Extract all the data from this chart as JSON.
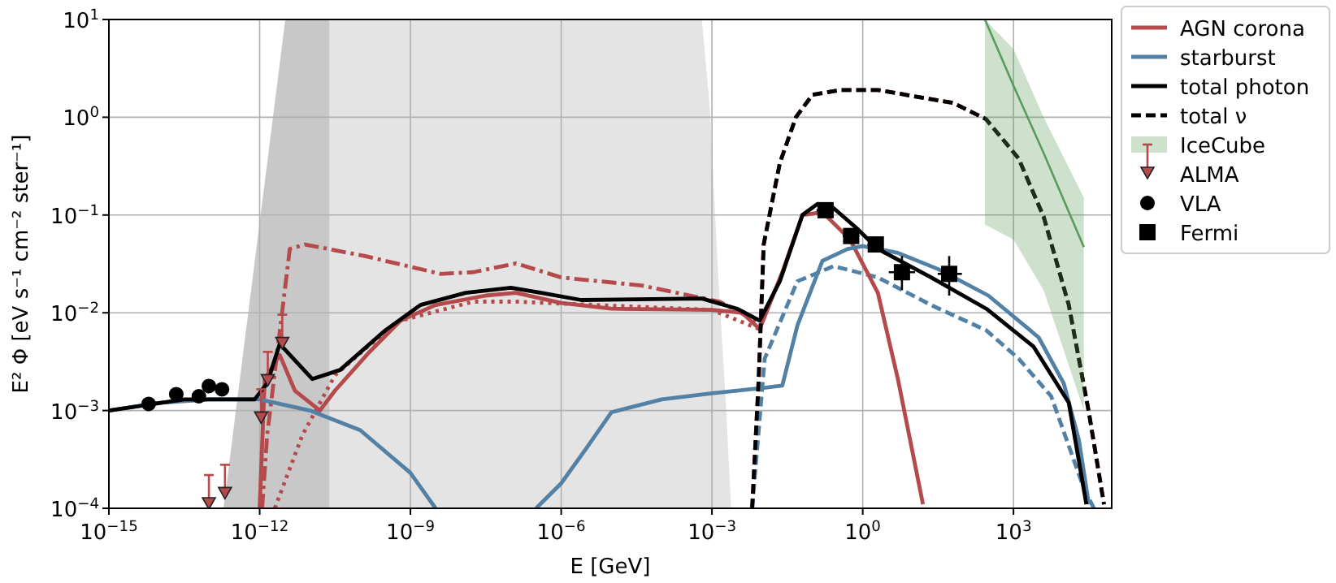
{
  "chart_data": {
    "type": "line",
    "xlabel": "E [GeV]",
    "ylabel": "E² Φ [eV s⁻¹ cm⁻² ster⁻¹]",
    "log": "xy",
    "grid": true,
    "legend": "top right",
    "xlim": [
      1e-15,
      90000.0
    ],
    "ylim": [
      0.0001,
      10
    ],
    "xticks": [
      {
        "value": 1e-15,
        "label": "10$^{−15}$"
      },
      {
        "value": 1e-12,
        "label": "10$^{−12}$"
      },
      {
        "value": 1e-09,
        "label": "10$^{−9}$"
      },
      {
        "value": 1e-06,
        "label": "10$^{−6}$"
      },
      {
        "value": 0.001,
        "label": "10$^{−3}$"
      },
      {
        "value": 1,
        "label": "10$^{0}$"
      },
      {
        "value": 1000,
        "label": "10$^{3}$"
      }
    ],
    "yticks": [
      {
        "value": 0.0001,
        "label": "10$^{−4}$"
      },
      {
        "value": 0.001,
        "label": "10$^{−3}$"
      },
      {
        "value": 0.01,
        "label": "10$^{−2}$"
      },
      {
        "value": 0.1,
        "label": "10$^{−1}$"
      },
      {
        "value": 1,
        "label": "10$^{0}$"
      },
      {
        "value": 10,
        "label": "10$^{1}$"
      }
    ],
    "series": [
      {
        "type": "area",
        "color": "#e4e4e4",
        "x": [
          2.45e-11,
          0.000631,
          0.000912,
          0.00132,
          0.00191,
          0.0024
        ],
        "values": [
          10,
          10,
          1.2,
          0.026,
          0.00107,
          0.0001
        ]
      },
      {
        "type": "area",
        "color": "#c8c8c8",
        "x": [
          1.91e-13,
          3.24e-12,
          2.45e-11
        ],
        "values": [
          0.0001,
          10,
          10
        ]
      },
      {
        "color": "#b54a4c",
        "line_style": "dashdot",
        "x": [
          1.12e-12,
          1.41e-12,
          3.98e-12,
          7.94e-12,
          1.26e-10,
          3.98e-09,
          1.78e-08,
          1.26e-07,
          1e-06,
          3.98e-05,
          0.00141,
          0.00891
        ],
        "values": [
          0.0001,
          0.00056,
          0.045,
          0.05,
          0.038,
          0.025,
          0.026,
          0.032,
          0.023,
          0.019,
          0.013,
          0.0079
        ]
      },
      {
        "color": "#b54a4c",
        "line_style": "dotted",
        "x": [
          2e-12,
          7.08e-12,
          3.16e-11,
          1.41e-10,
          6.31e-10,
          1.78e-08,
          1.26e-07,
          5.01e-06,
          0.001,
          0.00891
        ],
        "values": [
          0.0001,
          0.00056,
          0.0023,
          0.0045,
          0.0083,
          0.013,
          0.013,
          0.012,
          0.0107,
          0.0068
        ]
      },
      {
        "color": "#b54a4c",
        "line_style": "dashed",
        "x": [
          0.00631,
          0.00851,
          0.0107,
          0.0224,
          0.0468,
          0.1,
          0.355,
          2.0,
          63.1,
          282,
          1259,
          3981,
          12600.0,
          31600.0,
          63100.0
        ],
        "values": [
          0.0001,
          0.0021,
          0.05,
          0.34,
          1.0,
          1.7,
          1.9,
          1.9,
          1.4,
          0.96,
          0.38,
          0.096,
          0.012,
          0.00096,
          0.00011
        ]
      },
      {
        "color": "#5381a6",
        "line_style": "dashed",
        "x": [
          0.00631,
          0.0112,
          0.0501,
          0.263,
          2.0,
          22.9,
          288,
          1259,
          5623,
          25100.0,
          39800.0
        ],
        "values": [
          0.0001,
          0.0034,
          0.021,
          0.03,
          0.023,
          0.012,
          0.0066,
          0.0034,
          0.0014,
          0.00016,
          0.0001
        ]
      },
      {
        "name": "AGN corona",
        "color": "#b54a4c",
        "line_style": "solid",
        "x": [
          1e-12,
          1.26e-12,
          2.51e-12,
          5.01e-12,
          1.58e-11,
          3.16e-11,
          1.41e-10,
          6.31e-10,
          3.16e-09,
          3.16e-08,
          1.26e-07,
          1e-06,
          1e-05,
          0.001,
          0.00398,
          0.00891,
          0.0251,
          0.0631,
          0.158,
          0.562,
          2.0,
          5.01,
          15.8
        ],
        "values": [
          0.0001,
          0.0021,
          0.0037,
          0.0016,
          0.001,
          0.0016,
          0.0038,
          0.0083,
          0.012,
          0.015,
          0.016,
          0.0126,
          0.011,
          0.0107,
          0.01,
          0.0068,
          0.026,
          0.1,
          0.107,
          0.056,
          0.016,
          0.0021,
          0.00011
        ]
      },
      {
        "name": "starburst",
        "color": "#5381a6",
        "line_style": "solid",
        "x": [
          1e-15,
          1e-14,
          1e-13,
          1e-12,
          1e-11,
          1e-10,
          1e-09,
          3.16e-09,
          3.16e-08,
          3.16e-07,
          1e-06,
          3.16e-06,
          1e-05,
          0.0001,
          0.001,
          0.01,
          0.0251,
          0.0501,
          0.158,
          0.501,
          1,
          5.01,
          31.6,
          316,
          3162,
          10000.0,
          20000.0,
          31600.0
        ],
        "values": [
          0.001,
          0.0012,
          0.0013,
          0.0013,
          0.001,
          0.00063,
          0.00023,
          0.0001,
          null,
          0.0001,
          0.00018,
          0.00041,
          0.00096,
          0.0013,
          0.0015,
          0.0017,
          0.0018,
          0.0074,
          0.034,
          0.045,
          0.048,
          0.041,
          0.028,
          0.015,
          0.0056,
          0.0019,
          0.0005,
          0.00011
        ]
      },
      {
        "name": "total photon",
        "color": "#000000",
        "line_style": "solid",
        "x": [
          1e-15,
          3.16e-14,
          7.94e-13,
          1.41e-12,
          2.51e-12,
          1.12e-11,
          3.98e-11,
          3.16e-10,
          1.58e-09,
          1.26e-08,
          1e-07,
          3.98e-07,
          2.51e-06,
          0.000631,
          0.00316,
          0.00891,
          0.0224,
          0.0631,
          0.126,
          0.251,
          0.741,
          2.0,
          22.9,
          288,
          2512,
          12600.0,
          28200.0
        ],
        "values": [
          0.001,
          0.0013,
          0.0013,
          0.0019,
          0.0048,
          0.0021,
          0.0026,
          0.0066,
          0.012,
          0.016,
          0.018,
          0.016,
          0.0135,
          0.014,
          0.011,
          0.0083,
          0.021,
          0.1,
          0.13,
          0.12,
          0.074,
          0.045,
          0.023,
          0.011,
          0.0045,
          0.0012,
          0.00011
        ]
      },
      {
        "name": "total ν",
        "color": "#000000",
        "line_style": "dashed",
        "x": [
          0.00631,
          0.00851,
          0.0107,
          0.0224,
          0.0468,
          0.1,
          0.355,
          2.0,
          63.1,
          282,
          1259,
          3981,
          12600.0,
          31600.0,
          63100.0
        ],
        "values": [
          0.0001,
          0.0021,
          0.05,
          0.34,
          1.0,
          1.7,
          1.9,
          1.9,
          1.4,
          0.96,
          0.38,
          0.096,
          0.012,
          0.00096,
          0.00011
        ]
      },
      {
        "name": "IceCube",
        "color": "#5a9a5a",
        "line_style": "solid",
        "x": [
          270,
          1000,
          3981,
          25100.0
        ],
        "values": [
          10,
          2.1,
          0.43,
          0.047
        ],
        "lower": [
          0.08,
          0.056,
          0.017,
          0.001
        ],
        "upper": [
          10,
          5,
          1.0,
          0.15
        ]
      },
      {
        "type": "scatter",
        "name": "ALMA",
        "color": "#b54a4c",
        "marker": "triangle",
        "x": [
          9.77e-14,
          2.04e-13,
          1.07e-12,
          1.45e-12,
          2.82e-12
        ],
        "values": [
          0.00011,
          0.00014,
          0.00083,
          0.002,
          0.0048
        ]
      },
      {
        "type": "scatter",
        "name": "VLA",
        "color": "#000000",
        "marker": "circle",
        "x": [
          6.17e-15,
          2.19e-14,
          6.17e-14,
          9.77e-14,
          1.78e-13
        ],
        "values": [
          0.00117,
          0.00147,
          0.0014,
          0.00178,
          0.00165
        ]
      },
      {
        "type": "scatter",
        "name": "Fermi",
        "color": "#000000",
        "marker": "square",
        "x": [
          0.182,
          0.589,
          1.82,
          6.03,
          52.5
        ],
        "values": [
          0.112,
          0.061,
          0.05,
          0.026,
          0.025
        ],
        "errors": [
          null,
          null,
          null,
          [
            0.017,
            0.038
          ],
          [
            0.015,
            0.038
          ]
        ],
        "xerrors": [
          [
            0.12,
            0.28
          ],
          [
            0.4,
            0.85
          ],
          [
            1.25,
            2.6
          ],
          [
            3.3,
            11
          ],
          [
            31,
            94
          ]
        ]
      }
    ]
  }
}
